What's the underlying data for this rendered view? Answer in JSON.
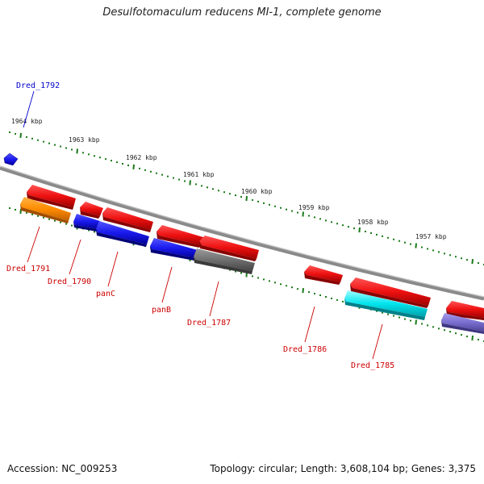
{
  "title": "Desulfotomaculum reducens MI-1, complete genome",
  "footer": {
    "accession": "Accession: NC_009253",
    "summary": "Topology: circular; Length: 3,608,104 bp; Genes: 3,375"
  },
  "scale_labels": [
    "1964 kbp",
    "1963 kbp",
    "1962 kbp",
    "1961 kbp",
    "1960 kbp",
    "1959 kbp",
    "1958 kbp",
    "1957 kbp"
  ],
  "genes": [
    {
      "label": "Dred_1792",
      "color": "#0000cc"
    },
    {
      "label": "Dred_1791",
      "color": "#cc0000"
    },
    {
      "label": "Dred_1790",
      "color": "#cc0000"
    },
    {
      "label": "panC",
      "color": "#cc0000"
    },
    {
      "label": "panB",
      "color": "#cc0000"
    },
    {
      "label": "Dred_1787",
      "color": "#cc0000"
    },
    {
      "label": "Dred_1786",
      "color": "#cc0000"
    },
    {
      "label": "Dred_1785",
      "color": "#cc0000"
    }
  ],
  "colors": {
    "backbone": "#8a8a8a",
    "ticks": "#1a7a1a",
    "feature_red": "#ee1111",
    "feature_blue": "#1a1aee",
    "feature_orange": "#ff8c00",
    "feature_gray": "#707070",
    "feature_cyan": "#00e5ee",
    "feature_lavender": "#7b6fd0"
  }
}
